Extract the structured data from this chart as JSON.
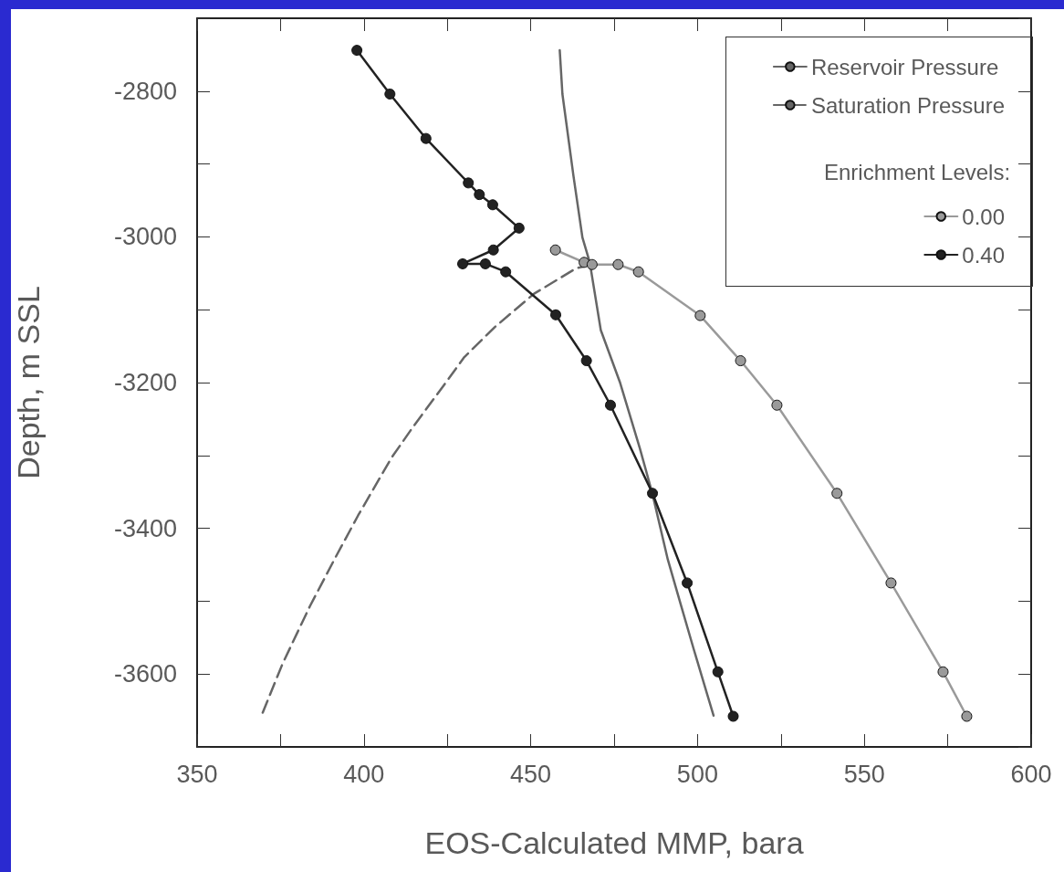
{
  "chart_data": {
    "type": "line",
    "xlabel": "EOS-Calculated MMP, bara",
    "ylabel": "Depth, m SSL",
    "legend_title": "Enrichment Levels:",
    "xlim": [
      350,
      600
    ],
    "xticks": [
      350,
      {
        "value": 375,
        "label": null
      },
      400,
      {
        "value": 425,
        "label": null
      },
      450,
      {
        "value": 475,
        "label": null
      },
      500,
      {
        "value": 525,
        "label": null
      },
      550,
      {
        "value": 575,
        "label": null
      },
      600
    ],
    "ylim": [
      -3700,
      -2700
    ],
    "yticks": [
      {
        "value": -2700,
        "label": null
      },
      -2800,
      {
        "value": -2900,
        "label": null
      },
      -3000,
      {
        "value": -3100,
        "label": null
      },
      -3200,
      {
        "value": -3300,
        "label": null
      },
      -3400,
      {
        "value": -3500,
        "label": null
      },
      -3600,
      {
        "value": -3700,
        "label": null
      }
    ],
    "grid": false,
    "legend": "top right",
    "series": [
      {
        "name": "Reservoir Pressure",
        "color": "#666666",
        "marker": "none",
        "line_style": "solid",
        "x": [
          458.7,
          459.5,
          462.8,
          465.5,
          467.7,
          471,
          476.7,
          482.7,
          486.5,
          491.1,
          495,
          498.8,
          504.8
        ],
        "values": [
          -2744,
          -2804,
          -2916,
          -3001,
          -3035,
          -3128,
          -3199,
          -3290,
          -3353,
          -3443,
          -3505,
          -3565,
          -3657
        ]
      },
      {
        "name": "Saturation Pressure",
        "color": "#666666",
        "marker": "none",
        "line_style": "dashed",
        "x": [
          468,
          463.7,
          451,
          439.2,
          430.1,
          424.7,
          414.7,
          408.3,
          398.3,
          391,
          383.8,
          375.6,
          369.4
        ],
        "values": [
          -3038,
          -3043,
          -3078,
          -3124,
          -3165,
          -3199,
          -3261,
          -3303,
          -3382,
          -3444,
          -3507,
          -3586,
          -3656
        ]
      },
      {
        "name": "0.00",
        "color": "#9a9a9a",
        "marker": "circle",
        "line_style": "solid",
        "x": [
          457.4,
          466,
          468.4,
          476.2,
          482.3,
          500.8,
          512.9,
          523.8,
          541.8,
          558,
          573.6,
          580.7
        ],
        "values": [
          -3018,
          -3035,
          -3038,
          -3038,
          -3048,
          -3108,
          -3170,
          -3231,
          -3352,
          -3475,
          -3597,
          -3658
        ]
      },
      {
        "name": "0.40",
        "color": "#222222",
        "marker": "circle",
        "line_style": "solid",
        "x": [
          397.9,
          407.8,
          418.6,
          431.3,
          434.6,
          438.6,
          446.5,
          438.8,
          429.6,
          436.4,
          442.5,
          457.5,
          466.7,
          473.9,
          486.5,
          496.9,
          506.1,
          510.7
        ],
        "values": [
          -2744,
          -2804,
          -2865,
          -2926,
          -2942,
          -2956,
          -2988,
          -3018,
          -3037,
          -3037,
          -3048,
          -3107,
          -3170,
          -3231,
          -3352,
          -3475,
          -3597,
          -3658
        ]
      }
    ]
  }
}
